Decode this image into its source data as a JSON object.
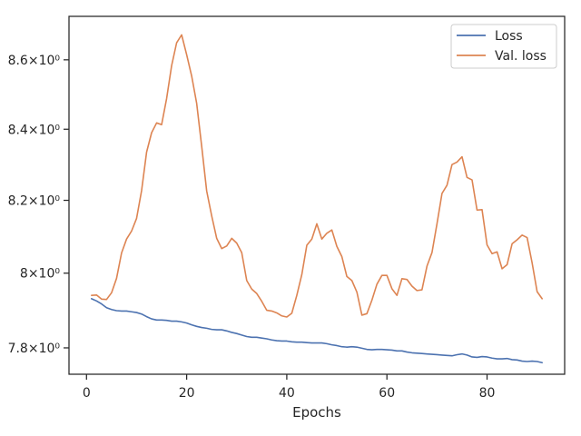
{
  "chart_data": {
    "type": "line",
    "xlabel": "Epochs",
    "ylabel": "",
    "title": "",
    "y_scale": "log",
    "xlim": [
      -3.5,
      95.5
    ],
    "ylim": [
      7.7306,
      8.7276
    ],
    "x_ticks": [
      0,
      20,
      40,
      60,
      80
    ],
    "y_ticks": [
      {
        "value": 7.8,
        "label": "7.8×10⁰"
      },
      {
        "value": 8.0,
        "label": "8×10⁰"
      },
      {
        "value": 8.2,
        "label": "8.2×10⁰"
      },
      {
        "value": 8.4,
        "label": "8.4×10⁰"
      },
      {
        "value": 8.6,
        "label": "8.6×10⁰"
      }
    ],
    "grid": false,
    "legend_position": "top-right",
    "series": [
      {
        "name": "Loss",
        "color": "#4c72b0",
        "x": [
          1,
          2,
          3,
          4,
          5,
          6,
          7,
          8,
          9,
          10,
          11,
          12,
          13,
          14,
          15,
          16,
          17,
          18,
          19,
          20,
          21,
          22,
          23,
          24,
          25,
          26,
          27,
          28,
          29,
          30,
          31,
          32,
          33,
          34,
          35,
          36,
          37,
          38,
          39,
          40,
          41,
          42,
          43,
          44,
          45,
          46,
          47,
          48,
          49,
          50,
          51,
          52,
          53,
          54,
          55,
          56,
          57,
          58,
          59,
          60,
          61,
          62,
          63,
          64,
          65,
          66,
          67,
          68,
          69,
          70,
          71,
          72,
          73,
          74,
          75,
          76,
          77,
          78,
          79,
          80,
          81,
          82,
          83,
          84,
          85,
          86,
          87,
          88,
          89,
          90,
          91
        ],
        "y": [
          7.931,
          7.925,
          7.917,
          7.907,
          7.902,
          7.899,
          7.898,
          7.898,
          7.896,
          7.894,
          7.89,
          7.883,
          7.877,
          7.874,
          7.874,
          7.873,
          7.871,
          7.871,
          7.869,
          7.866,
          7.861,
          7.857,
          7.854,
          7.852,
          7.849,
          7.848,
          7.848,
          7.845,
          7.841,
          7.838,
          7.834,
          7.83,
          7.828,
          7.828,
          7.826,
          7.824,
          7.821,
          7.819,
          7.818,
          7.818,
          7.816,
          7.815,
          7.815,
          7.814,
          7.813,
          7.813,
          7.813,
          7.811,
          7.808,
          7.806,
          7.803,
          7.802,
          7.803,
          7.802,
          7.799,
          7.796,
          7.795,
          7.796,
          7.796,
          7.795,
          7.794,
          7.792,
          7.792,
          7.789,
          7.787,
          7.786,
          7.785,
          7.784,
          7.783,
          7.782,
          7.781,
          7.78,
          7.779,
          7.782,
          7.784,
          7.781,
          7.776,
          7.775,
          7.777,
          7.776,
          7.773,
          7.771,
          7.771,
          7.772,
          7.769,
          7.768,
          7.765,
          7.764,
          7.765,
          7.764,
          7.761
        ]
      },
      {
        "name": "Val. loss",
        "color": "#dd8452",
        "x": [
          1,
          2,
          3,
          4,
          5,
          6,
          7,
          8,
          9,
          10,
          11,
          12,
          13,
          14,
          15,
          16,
          17,
          18,
          19,
          20,
          21,
          22,
          23,
          24,
          25,
          26,
          27,
          28,
          29,
          30,
          31,
          32,
          33,
          34,
          35,
          36,
          37,
          38,
          39,
          40,
          41,
          42,
          43,
          44,
          45,
          46,
          47,
          48,
          49,
          50,
          51,
          52,
          53,
          54,
          55,
          56,
          57,
          58,
          59,
          60,
          61,
          62,
          63,
          64,
          65,
          66,
          67,
          68,
          69,
          70,
          71,
          72,
          73,
          74,
          75,
          76,
          77,
          78,
          79,
          80,
          81,
          82,
          83,
          84,
          85,
          86,
          87,
          88,
          89,
          90,
          91
        ],
        "y": [
          7.94,
          7.941,
          7.93,
          7.929,
          7.947,
          7.986,
          8.055,
          8.093,
          8.115,
          8.15,
          8.227,
          8.335,
          8.39,
          8.418,
          8.413,
          8.488,
          8.583,
          8.65,
          8.673,
          8.615,
          8.553,
          8.474,
          8.352,
          8.226,
          8.157,
          8.095,
          8.067,
          8.074,
          8.095,
          8.082,
          8.056,
          7.98,
          7.957,
          7.945,
          7.924,
          7.9,
          7.898,
          7.893,
          7.885,
          7.882,
          7.892,
          7.94,
          7.996,
          8.076,
          8.093,
          8.135,
          8.093,
          8.109,
          8.118,
          8.073,
          8.045,
          7.991,
          7.98,
          7.949,
          7.887,
          7.891,
          7.927,
          7.97,
          7.994,
          7.994,
          7.958,
          7.94,
          7.985,
          7.983,
          7.965,
          7.953,
          7.955,
          8.019,
          8.056,
          8.135,
          8.219,
          8.242,
          8.3,
          8.307,
          8.322,
          8.264,
          8.257,
          8.173,
          8.174,
          8.077,
          8.053,
          8.058,
          8.012,
          8.023,
          8.08,
          8.091,
          8.104,
          8.097,
          8.028,
          7.95,
          7.931
        ]
      }
    ]
  }
}
